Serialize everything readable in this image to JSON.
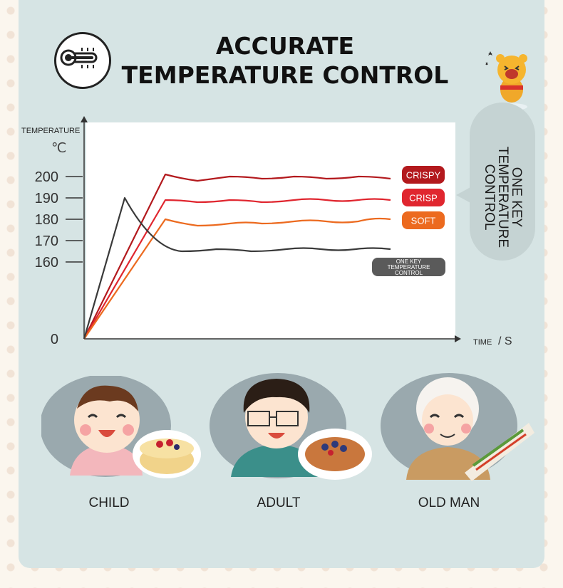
{
  "header": {
    "title_line1": "ACCURATE",
    "title_line2": "TEMPERATURE CONTROL",
    "icon": "thermometer-icon"
  },
  "side_note": {
    "text_line1": "ONE KEY",
    "text_line2": "TEMPERATURE",
    "text_line3": "CONTROL",
    "mascot": "cheering-bear-icon"
  },
  "chart_data": {
    "type": "line",
    "ylabel": "TEMPERATURE",
    "yunit": "℃",
    "xlabel": "TIME",
    "xunit": "/ S",
    "y_ticks": [
      "200",
      "190",
      "180",
      "170",
      "160",
      "0"
    ],
    "grid": false,
    "series": [
      {
        "name": "CRISPY",
        "color": "#b3191d",
        "values": [
          0,
          201,
          198,
          200,
          199,
          200,
          199,
          200,
          199
        ]
      },
      {
        "name": "CRISP",
        "color": "#e0262f",
        "values": [
          0,
          189,
          188,
          189,
          188,
          189,
          189,
          189,
          189
        ]
      },
      {
        "name": "SOFT",
        "color": "#ec6a1f",
        "values": [
          0,
          180,
          177,
          178,
          178,
          179,
          179,
          179,
          180
        ]
      },
      {
        "name": "ONE KEY TEMPERATURE CONTROL",
        "color": "#3a3a3a",
        "values": [
          0,
          190,
          165,
          166,
          165,
          166,
          166,
          166,
          166
        ]
      }
    ]
  },
  "people": [
    {
      "label": "CHILD",
      "food": "crepe-cake-icon"
    },
    {
      "label": "ADULT",
      "food": "pancake-icon"
    },
    {
      "label": "OLD MAN",
      "food": "wrap-roll-icon"
    }
  ]
}
